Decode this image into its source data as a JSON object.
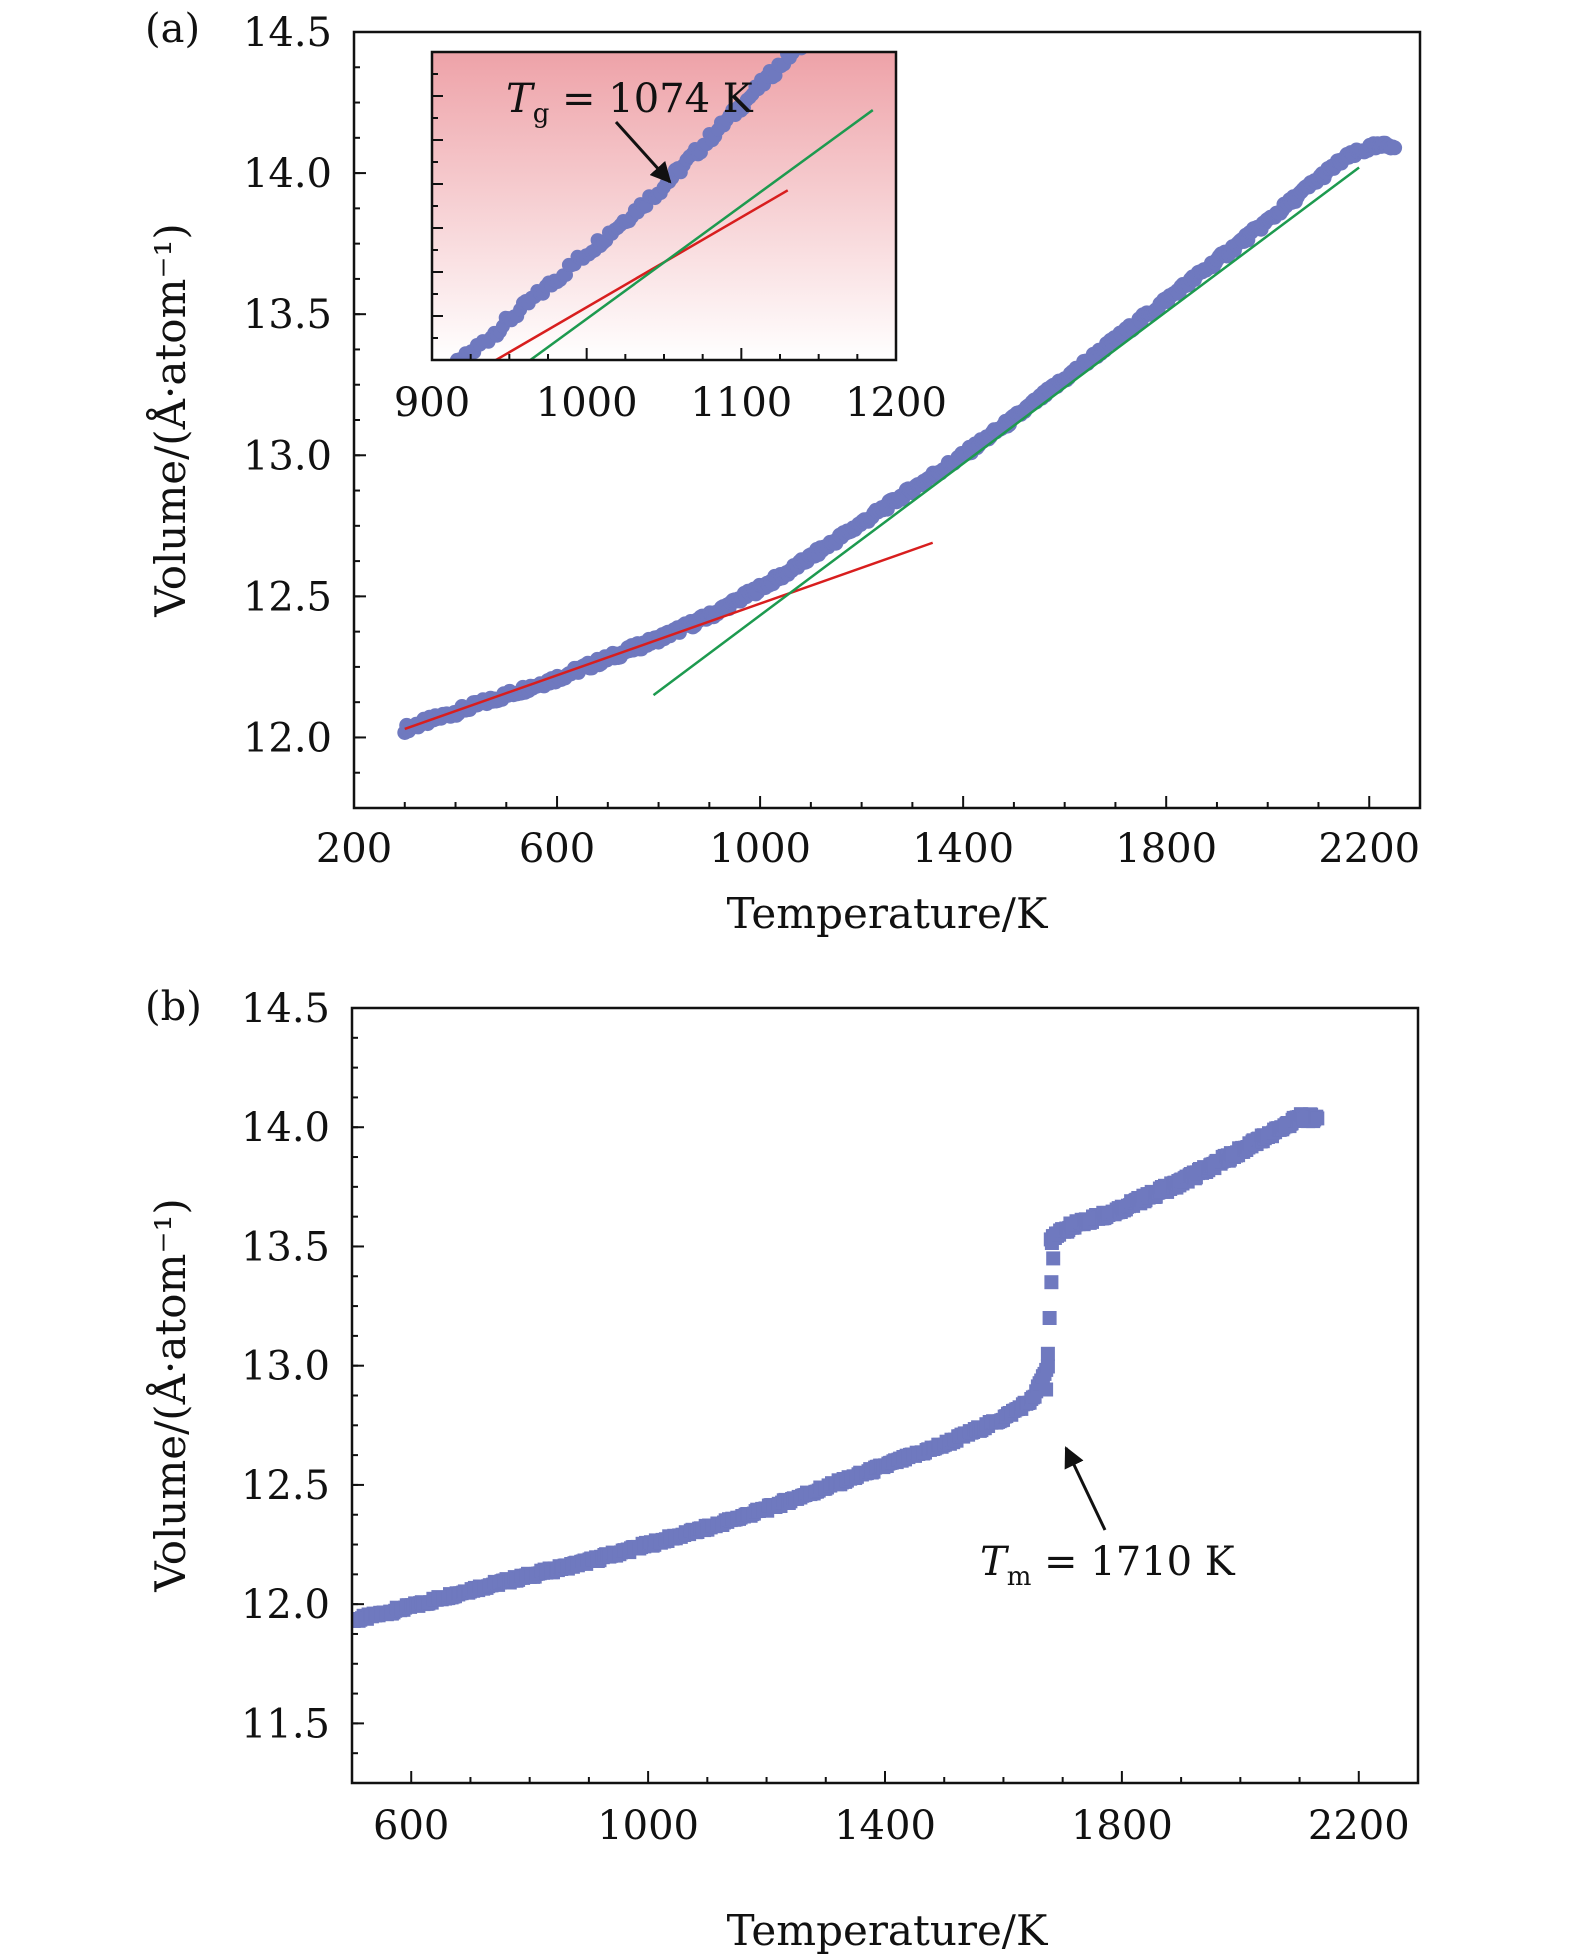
{
  "chart_data": [
    {
      "panel": "(a)",
      "type": "scatter",
      "xlabel": "Temperature/K",
      "ylabel": "Volume/(Å·atom⁻¹)",
      "xlim": [
        200,
        2300
      ],
      "ylim": [
        11.75,
        14.5
      ],
      "xticks": [
        200,
        600,
        1000,
        1400,
        1800,
        2200
      ],
      "yticks": [
        12.0,
        12.5,
        13.0,
        13.5,
        14.0,
        14.5
      ],
      "yticklabels": [
        "12.0",
        "12.5",
        "13.0",
        "13.5",
        "14.0",
        "14.5"
      ],
      "series": [
        {
          "kind": "points",
          "color": "#6f79bf",
          "x": [
            300,
            400,
            500,
            600,
            700,
            800,
            900,
            1000,
            1050,
            1100,
            1200,
            1300,
            1400,
            1500,
            1600,
            1700,
            1800,
            1900,
            2000,
            2100,
            2150,
            2200,
            2250
          ],
          "y": [
            12.03,
            12.09,
            12.15,
            12.21,
            12.28,
            12.35,
            12.43,
            12.53,
            12.58,
            12.64,
            12.76,
            12.88,
            13.0,
            13.13,
            13.27,
            13.41,
            13.55,
            13.69,
            13.83,
            13.98,
            14.05,
            14.09,
            14.1
          ]
        },
        {
          "kind": "fit",
          "color": "#d81e1e",
          "x": [
            300,
            1340
          ],
          "y": [
            12.03,
            12.69
          ]
        },
        {
          "kind": "fit",
          "color": "#1d9a4f",
          "x": [
            790,
            2180
          ],
          "y": [
            12.15,
            14.02
          ]
        }
      ],
      "inset": {
        "xlim": [
          900,
          1200
        ],
        "xticks": [
          900,
          1000,
          1100,
          1200
        ],
        "background": {
          "top": "#eea2a8",
          "bottom": "#ffffff"
        },
        "annotation": {
          "text_italic": "T",
          "text_sub": "g",
          "text_rest": " = 1074 K",
          "x": 1074
        }
      }
    },
    {
      "panel": "(b)",
      "type": "scatter",
      "xlabel": "Temperature/K",
      "ylabel": "Volume/(Å·atom⁻¹)",
      "xlim": [
        500,
        2300
      ],
      "ylim": [
        11.25,
        14.5
      ],
      "xticks": [
        600,
        1000,
        1400,
        1800,
        2200
      ],
      "yticks": [
        11.5,
        12.0,
        12.5,
        13.0,
        13.5,
        14.0,
        14.5
      ],
      "yticklabels": [
        "11.5",
        "12.0",
        "12.5",
        "13.0",
        "13.5",
        "14.0",
        "14.5"
      ],
      "series": [
        {
          "kind": "points",
          "color": "#6f79bf",
          "x": [
            500,
            600,
            700,
            800,
            900,
            1000,
            1100,
            1200,
            1300,
            1400,
            1500,
            1600,
            1650,
            1675,
            1680,
            1700,
            1800,
            1900,
            2000,
            2100,
            2130
          ],
          "y": [
            11.93,
            11.99,
            12.06,
            12.12,
            12.18,
            12.25,
            12.32,
            12.4,
            12.49,
            12.58,
            12.67,
            12.78,
            12.86,
            13.0,
            13.52,
            13.57,
            13.66,
            13.77,
            13.9,
            14.04,
            14.04
          ]
        }
      ],
      "annotation": {
        "text_italic": "T",
        "text_sub": "m",
        "text_rest": " = 1710 K",
        "x": 1710
      }
    }
  ]
}
